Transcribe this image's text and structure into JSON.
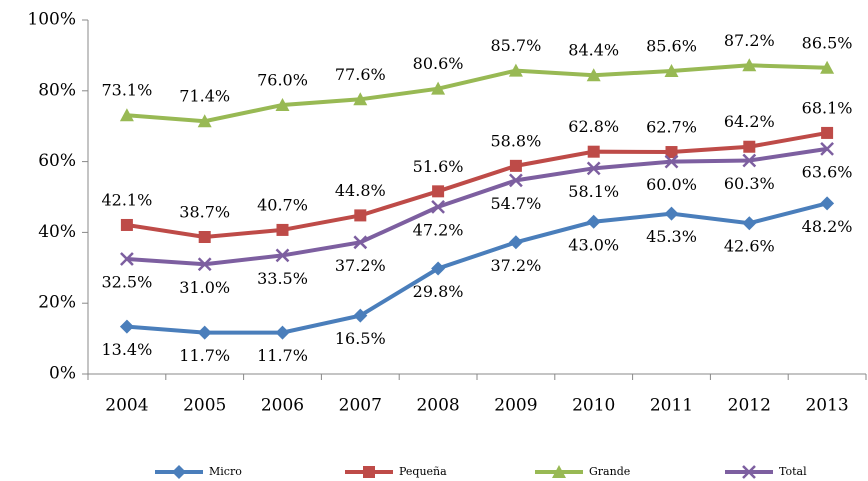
{
  "chart_data": {
    "type": "line",
    "categories": [
      "2004",
      "2005",
      "2006",
      "2007",
      "2008",
      "2009",
      "2010",
      "2011",
      "2012",
      "2013"
    ],
    "series": [
      {
        "name": "Micro",
        "color": "#4a7ebb",
        "marker": "diamond",
        "label_side": "below",
        "values": [
          13.4,
          11.7,
          11.7,
          16.5,
          29.8,
          37.2,
          43.0,
          45.3,
          42.6,
          48.2
        ],
        "value_labels": [
          "13.4%",
          "11.7%",
          "11.7%",
          "16.5%",
          "29.8%",
          "37.2%",
          "43.0%",
          "45.3%",
          "42.6%",
          "48.2%"
        ]
      },
      {
        "name": "Pequeña",
        "color": "#be4b48",
        "marker": "square",
        "label_side": "above",
        "values": [
          42.1,
          38.7,
          40.7,
          44.8,
          51.6,
          58.8,
          62.8,
          62.7,
          64.2,
          68.1
        ],
        "value_labels": [
          "42.1%",
          "38.7%",
          "40.7%",
          "44.8%",
          "51.6%",
          "58.8%",
          "62.8%",
          "62.7%",
          "64.2%",
          "68.1%"
        ]
      },
      {
        "name": "Grande",
        "color": "#98b954",
        "marker": "triangle",
        "label_side": "above",
        "values": [
          73.1,
          71.4,
          76.0,
          77.6,
          80.6,
          85.7,
          84.4,
          85.6,
          87.2,
          86.5
        ],
        "value_labels": [
          "73.1%",
          "71.4%",
          "76.0%",
          "77.6%",
          "80.6%",
          "85.7%",
          "84.4%",
          "85.6%",
          "87.2%",
          "86.5%"
        ]
      },
      {
        "name": "Total",
        "color": "#7d5fa0",
        "marker": "x",
        "label_side": "below",
        "values": [
          32.5,
          31.0,
          33.5,
          37.2,
          47.2,
          54.7,
          58.1,
          60.0,
          60.3,
          63.6
        ],
        "value_labels": [
          "32.5%",
          "31.0%",
          "33.5%",
          "37.2%",
          "47.2%",
          "54.7%",
          "58.1%",
          "60.0%",
          "60.3%",
          "63.6%"
        ]
      }
    ],
    "ylim": [
      0,
      100
    ],
    "yticks": [
      {
        "value": 0,
        "label": "0%"
      },
      {
        "value": 20,
        "label": "20%"
      },
      {
        "value": 40,
        "label": "40%"
      },
      {
        "value": 60,
        "label": "60%"
      },
      {
        "value": 80,
        "label": "80%"
      },
      {
        "value": 100,
        "label": "100%"
      }
    ],
    "grid": false,
    "legend": "bottom"
  }
}
